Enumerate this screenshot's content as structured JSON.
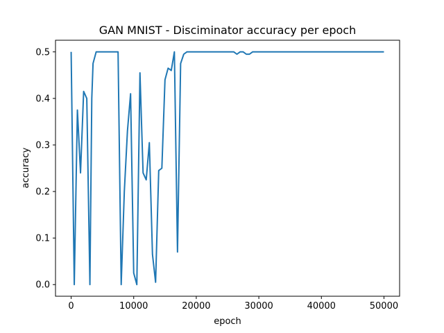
{
  "chart_data": {
    "type": "line",
    "title": "GAN MNIST - Disciminator accuracy per epoch",
    "xlabel": "epoch",
    "ylabel": "accuracy",
    "xlim": [
      -2500,
      52500
    ],
    "ylim": [
      -0.025,
      0.525
    ],
    "xticks": [
      0,
      10000,
      20000,
      30000,
      40000,
      50000
    ],
    "xtick_labels": [
      "0",
      "10000",
      "20000",
      "30000",
      "40000",
      "50000"
    ],
    "yticks": [
      0.0,
      0.1,
      0.2,
      0.3,
      0.4,
      0.5
    ],
    "ytick_labels": [
      "0.0",
      "0.1",
      "0.2",
      "0.3",
      "0.4",
      "0.5"
    ],
    "grid": false,
    "color": "#1f77b4",
    "x": [
      0,
      500,
      1000,
      1500,
      2000,
      2500,
      3000,
      3300,
      3500,
      4000,
      4500,
      5000,
      5500,
      6000,
      6500,
      7000,
      7500,
      8000,
      8500,
      9000,
      9500,
      10000,
      10500,
      11000,
      11500,
      12000,
      12500,
      13000,
      13500,
      14000,
      14500,
      15000,
      15500,
      16000,
      16500,
      17000,
      17500,
      18000,
      18500,
      19000,
      19500,
      20000,
      21000,
      22000,
      23000,
      24000,
      25000,
      26000,
      26500,
      27000,
      27500,
      28000,
      28500,
      29000,
      30000,
      35000,
      40000,
      45000,
      50000
    ],
    "y": [
      0.5,
      0.0,
      0.375,
      0.24,
      0.415,
      0.4,
      0.0,
      0.4,
      0.475,
      0.5,
      0.5,
      0.5,
      0.5,
      0.5,
      0.5,
      0.5,
      0.5,
      0.0,
      0.2,
      0.33,
      0.41,
      0.025,
      0.0,
      0.455,
      0.24,
      0.225,
      0.305,
      0.065,
      0.005,
      0.245,
      0.25,
      0.44,
      0.465,
      0.46,
      0.5,
      0.07,
      0.475,
      0.495,
      0.5,
      0.5,
      0.5,
      0.5,
      0.5,
      0.5,
      0.5,
      0.5,
      0.5,
      0.5,
      0.495,
      0.5,
      0.5,
      0.495,
      0.495,
      0.5,
      0.5,
      0.5,
      0.5,
      0.5,
      0.5
    ]
  }
}
